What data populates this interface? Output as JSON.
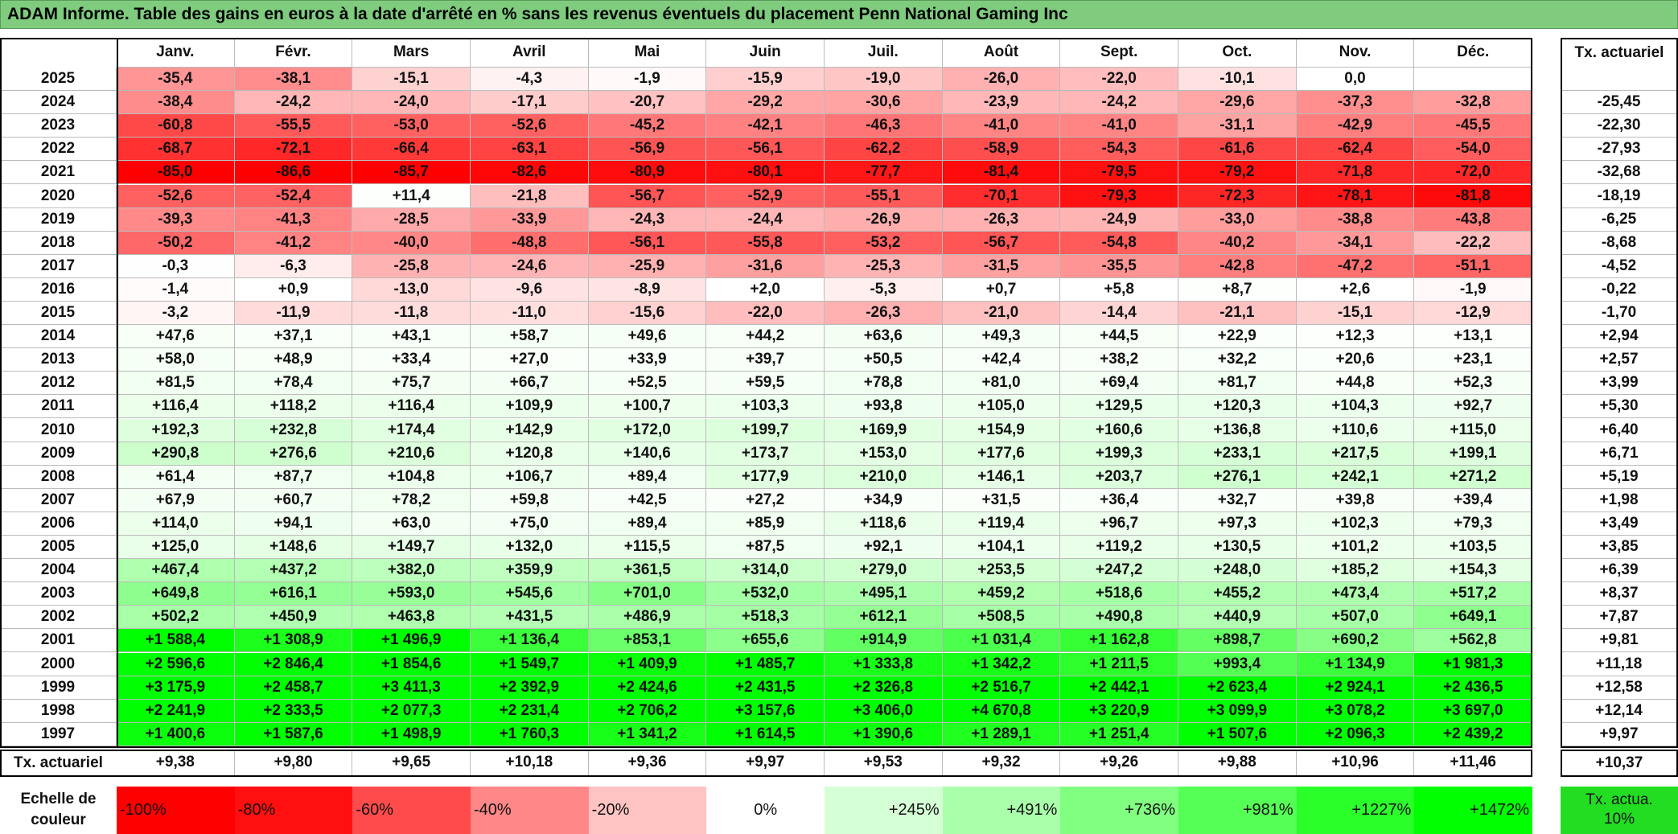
{
  "header": {
    "title": "ADAM Informe. Table des gains en euros à la date d'arrêté en % sans les revenus éventuels du placement Penn National Gaming Inc"
  },
  "table": {
    "columns": [
      "Janv.",
      "Févr.",
      "Mars",
      "Avril",
      "Mai",
      "Juin",
      "Juil.",
      "Août",
      "Sept.",
      "Oct.",
      "Nov.",
      "Déc."
    ],
    "rate_header": "Tx. actuariel",
    "rows": [
      {
        "year": "2025",
        "cells": [
          "-35,4",
          "-38,1",
          "-15,1",
          "-4,3",
          "-1,9",
          "-15,9",
          "-19,0",
          "-26,0",
          "-22,0",
          "-10,1",
          "0,0",
          null
        ],
        "rate": null
      },
      {
        "year": "2024",
        "cells": [
          "-38,4",
          "-24,2",
          "-24,0",
          "-17,1",
          "-20,7",
          "-29,2",
          "-30,6",
          "-23,9",
          "-24,2",
          "-29,6",
          "-37,3",
          "-32,8"
        ],
        "rate": "-25,45"
      },
      {
        "year": "2023",
        "cells": [
          "-60,8",
          "-55,5",
          "-53,0",
          "-52,6",
          "-45,2",
          "-42,1",
          "-46,3",
          "-41,0",
          "-41,0",
          "-31,1",
          "-42,9",
          "-45,5"
        ],
        "rate": "-22,30"
      },
      {
        "year": "2022",
        "cells": [
          "-68,7",
          "-72,1",
          "-66,4",
          "-63,1",
          "-56,9",
          "-56,1",
          "-62,2",
          "-58,9",
          "-54,3",
          "-61,6",
          "-62,4",
          "-54,0"
        ],
        "rate": "-27,93"
      },
      {
        "year": "2021",
        "cells": [
          "-85,0",
          "-86,6",
          "-85,7",
          "-82,6",
          "-80,9",
          "-80,1",
          "-77,7",
          "-81,4",
          "-79,5",
          "-79,2",
          "-71,8",
          "-72,0"
        ],
        "rate": "-32,68"
      },
      {
        "year": "2020",
        "cells": [
          "-52,6",
          "-52,4",
          "+11,4",
          "-21,8",
          "-56,7",
          "-52,9",
          "-55,1",
          "-70,1",
          "-79,3",
          "-72,3",
          "-78,1",
          "-81,8"
        ],
        "rate": "-18,19"
      },
      {
        "year": "2019",
        "cells": [
          "-39,3",
          "-41,3",
          "-28,5",
          "-33,9",
          "-24,3",
          "-24,4",
          "-26,9",
          "-26,3",
          "-24,9",
          "-33,0",
          "-38,8",
          "-43,8"
        ],
        "rate": "-6,25"
      },
      {
        "year": "2018",
        "cells": [
          "-50,2",
          "-41,2",
          "-40,0",
          "-48,8",
          "-56,1",
          "-55,8",
          "-53,2",
          "-56,7",
          "-54,8",
          "-40,2",
          "-34,1",
          "-22,2"
        ],
        "rate": "-8,68"
      },
      {
        "year": "2017",
        "cells": [
          "-0,3",
          "-6,3",
          "-25,8",
          "-24,6",
          "-25,9",
          "-31,6",
          "-25,3",
          "-31,5",
          "-35,5",
          "-42,8",
          "-47,2",
          "-51,1"
        ],
        "rate": "-4,52"
      },
      {
        "year": "2016",
        "cells": [
          "-1,4",
          "+0,9",
          "-13,0",
          "-9,6",
          "-8,9",
          "+2,0",
          "-5,3",
          "+0,7",
          "+5,8",
          "+8,7",
          "+2,6",
          "-1,9"
        ],
        "rate": "-0,22"
      },
      {
        "year": "2015",
        "cells": [
          "-3,2",
          "-11,9",
          "-11,8",
          "-11,0",
          "-15,6",
          "-22,0",
          "-26,3",
          "-21,0",
          "-14,4",
          "-21,1",
          "-15,1",
          "-12,9"
        ],
        "rate": "-1,70"
      },
      {
        "year": "2014",
        "cells": [
          "+47,6",
          "+37,1",
          "+43,1",
          "+58,7",
          "+49,6",
          "+44,2",
          "+63,6",
          "+49,3",
          "+44,5",
          "+22,9",
          "+12,3",
          "+13,1"
        ],
        "rate": "+2,94"
      },
      {
        "year": "2013",
        "cells": [
          "+58,0",
          "+48,9",
          "+33,4",
          "+27,0",
          "+33,9",
          "+39,7",
          "+50,5",
          "+42,4",
          "+38,2",
          "+32,2",
          "+20,6",
          "+23,1"
        ],
        "rate": "+2,57"
      },
      {
        "year": "2012",
        "cells": [
          "+81,5",
          "+78,4",
          "+75,7",
          "+66,7",
          "+52,5",
          "+59,5",
          "+78,8",
          "+81,0",
          "+69,4",
          "+81,7",
          "+44,8",
          "+52,3"
        ],
        "rate": "+3,99"
      },
      {
        "year": "2011",
        "cells": [
          "+116,4",
          "+118,2",
          "+116,4",
          "+109,9",
          "+100,7",
          "+103,3",
          "+93,8",
          "+105,0",
          "+129,5",
          "+120,3",
          "+104,3",
          "+92,7"
        ],
        "rate": "+5,30"
      },
      {
        "year": "2010",
        "cells": [
          "+192,3",
          "+232,8",
          "+174,4",
          "+142,9",
          "+172,0",
          "+199,7",
          "+169,9",
          "+154,9",
          "+160,6",
          "+136,8",
          "+110,6",
          "+115,0"
        ],
        "rate": "+6,40"
      },
      {
        "year": "2009",
        "cells": [
          "+290,8",
          "+276,6",
          "+210,6",
          "+120,8",
          "+140,6",
          "+173,7",
          "+153,0",
          "+177,6",
          "+199,3",
          "+233,1",
          "+217,5",
          "+199,1"
        ],
        "rate": "+6,71"
      },
      {
        "year": "2008",
        "cells": [
          "+61,4",
          "+87,7",
          "+104,8",
          "+106,7",
          "+89,4",
          "+177,9",
          "+210,0",
          "+146,1",
          "+203,7",
          "+276,1",
          "+242,1",
          "+271,2"
        ],
        "rate": "+5,19"
      },
      {
        "year": "2007",
        "cells": [
          "+67,9",
          "+60,7",
          "+78,2",
          "+59,8",
          "+42,5",
          "+27,2",
          "+34,9",
          "+31,5",
          "+36,4",
          "+32,7",
          "+39,8",
          "+39,4"
        ],
        "rate": "+1,98"
      },
      {
        "year": "2006",
        "cells": [
          "+114,0",
          "+94,1",
          "+63,0",
          "+75,0",
          "+89,4",
          "+85,9",
          "+118,6",
          "+119,4",
          "+96,7",
          "+97,3",
          "+102,3",
          "+79,3"
        ],
        "rate": "+3,49"
      },
      {
        "year": "2005",
        "cells": [
          "+125,0",
          "+148,6",
          "+149,7",
          "+132,0",
          "+115,5",
          "+87,5",
          "+92,1",
          "+104,1",
          "+119,2",
          "+130,5",
          "+101,2",
          "+103,5"
        ],
        "rate": "+3,85"
      },
      {
        "year": "2004",
        "cells": [
          "+467,4",
          "+437,2",
          "+382,0",
          "+359,9",
          "+361,5",
          "+314,0",
          "+279,0",
          "+253,5",
          "+247,2",
          "+248,0",
          "+185,2",
          "+154,3"
        ],
        "rate": "+6,39"
      },
      {
        "year": "2003",
        "cells": [
          "+649,8",
          "+616,1",
          "+593,0",
          "+545,6",
          "+701,0",
          "+532,0",
          "+495,1",
          "+459,2",
          "+518,6",
          "+455,2",
          "+473,4",
          "+517,2"
        ],
        "rate": "+8,37"
      },
      {
        "year": "2002",
        "cells": [
          "+502,2",
          "+450,9",
          "+463,8",
          "+431,5",
          "+486,9",
          "+518,3",
          "+612,1",
          "+508,5",
          "+490,8",
          "+440,9",
          "+507,0",
          "+649,1"
        ],
        "rate": "+7,87"
      },
      {
        "year": "2001",
        "cells": [
          "+1 588,4",
          "+1 308,9",
          "+1 496,9",
          "+1 136,4",
          "+853,1",
          "+655,6",
          "+914,9",
          "+1 031,4",
          "+1 162,8",
          "+898,7",
          "+690,2",
          "+562,8"
        ],
        "rate": "+9,81"
      },
      {
        "year": "2000",
        "cells": [
          "+2 596,6",
          "+2 846,4",
          "+1 854,6",
          "+1 549,7",
          "+1 409,9",
          "+1 485,7",
          "+1 333,8",
          "+1 342,2",
          "+1 211,5",
          "+993,4",
          "+1 134,9",
          "+1 981,3"
        ],
        "rate": "+11,18"
      },
      {
        "year": "1999",
        "cells": [
          "+3 175,9",
          "+2 458,7",
          "+3 411,3",
          "+2 392,9",
          "+2 424,6",
          "+2 431,5",
          "+2 326,8",
          "+2 516,7",
          "+2 442,1",
          "+2 623,4",
          "+2 924,1",
          "+2 436,5"
        ],
        "rate": "+12,58"
      },
      {
        "year": "1998",
        "cells": [
          "+2 241,9",
          "+2 333,5",
          "+2 077,3",
          "+2 231,4",
          "+2 706,2",
          "+3 157,6",
          "+3 406,0",
          "+4 670,8",
          "+3 220,9",
          "+3 099,9",
          "+3 078,2",
          "+3 697,0"
        ],
        "rate": "+12,14"
      },
      {
        "year": "1997",
        "cells": [
          "+1 400,6",
          "+1 587,6",
          "+1 498,9",
          "+1 760,3",
          "+1 341,2",
          "+1 614,5",
          "+1 390,6",
          "+1 289,1",
          "+1 251,4",
          "+1 507,6",
          "+2 096,3",
          "+2 439,2"
        ],
        "rate": "+9,97"
      }
    ],
    "footer": {
      "label": "Tx. actuariel",
      "cells": [
        "+9,38",
        "+9,80",
        "+9,65",
        "+10,18",
        "+9,36",
        "+9,97",
        "+9,53",
        "+9,32",
        "+9,26",
        "+9,88",
        "+10,96",
        "+11,46"
      ],
      "rate": "+10,37"
    }
  },
  "legend": {
    "label": "Echelle de couleur",
    "steps": [
      "-100%",
      "-80%",
      "-60%",
      "-40%",
      "-20%",
      "0%",
      "+245%",
      "+491%",
      "+736%",
      "+981%",
      "+1227%",
      "+1472%"
    ],
    "rate_box": "Tx. actua. 10%"
  }
}
